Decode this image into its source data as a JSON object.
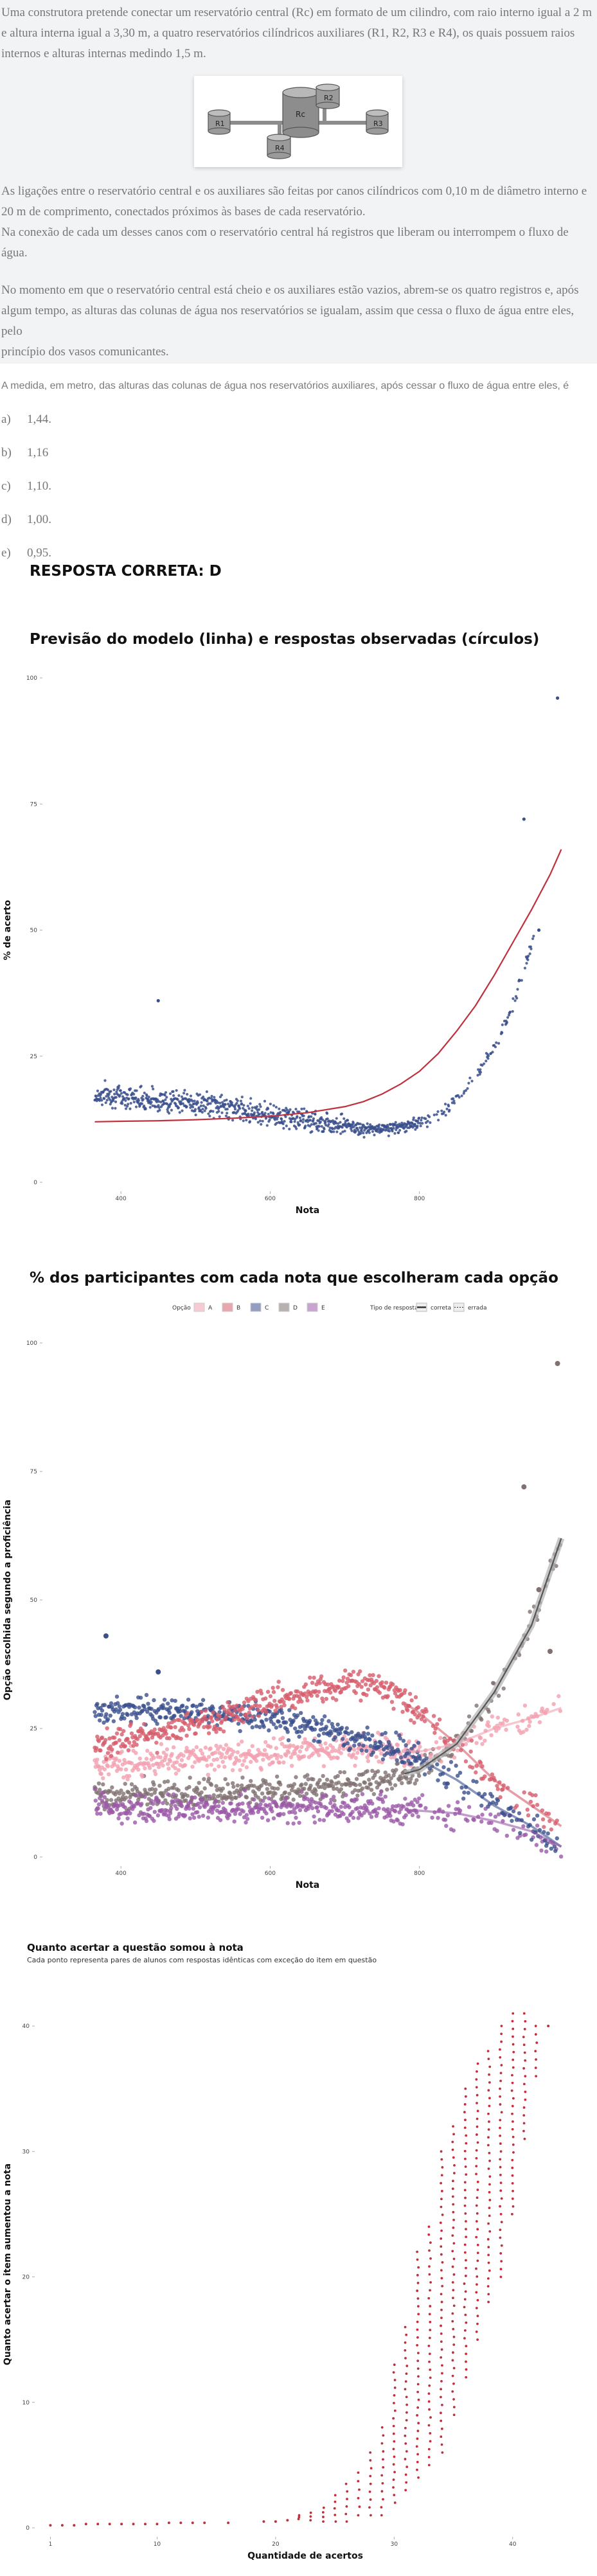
{
  "question": {
    "paragraphs": [
      [
        "Uma construtora pretende conectar um reservatório central (Rc) em formato de um cilindro, com raio interno igual a 2 m",
        "e altura interna igual a 3,30 m, a quatro reservatórios cilíndricos auxiliares (R1, R2, R3 e R4), os quais possuem raios",
        "internos e alturas internas medindo 1,5 m."
      ],
      [
        "As ligações entre o reservatório central e os auxiliares são feitas por canos cilíndricos com 0,10 m de diâmetro interno e",
        "20 m de comprimento, conectados próximos às bases de cada reservatório.",
        "Na conexão de cada um desses canos com o reservatório central há registros que liberam ou interrompem o fluxo de",
        "água."
      ],
      [
        "No momento em que o reservatório central está cheio e os auxiliares estão vazios, abrem-se os quatro registros e, após",
        "algum tempo, as alturas das colunas de água nos reservatórios se igualam, assim que cessa o fluxo de água entre eles, pelo",
        "princípio dos vasos comunicantes."
      ]
    ],
    "figure_labels": {
      "central": "Rc",
      "r1": "R1",
      "r2": "R2",
      "r3": "R3",
      "r4": "R4"
    },
    "stem": "A medida, em metro, das alturas das colunas de água nos reservatórios auxiliares, após cessar o fluxo de água entre eles, é",
    "alternatives": [
      {
        "letter": "a)",
        "text": "1,44."
      },
      {
        "letter": "b)",
        "text": "1,16"
      },
      {
        "letter": "c)",
        "text": "1,10."
      },
      {
        "letter": "d)",
        "text": "1,00."
      },
      {
        "letter": "e)",
        "text": "0,95."
      }
    ],
    "answer": "RESPOSTA CORRETA: D"
  },
  "colors": {
    "model_line": "#c0303c",
    "observed": "#3a4f8c",
    "A": "#f2a0b0",
    "B": "#d65c6c",
    "C": "#3a4f8c",
    "D": "#807070",
    "E": "#9b59a8",
    "correct_band": "#b0b0b0",
    "bar_points": "#c0303c"
  },
  "chart_data": [
    {
      "type": "line",
      "title": "Previsão do modelo (linha) e respostas observadas (círculos)",
      "xlabel": "Nota",
      "ylabel": "% de acerto",
      "xlim": [
        300,
        1000
      ],
      "ylim": [
        0,
        100
      ],
      "xticks": [
        {
          "v": 400,
          "label": "400"
        },
        {
          "v": 600,
          "label": "600"
        },
        {
          "v": 800,
          "label": "800"
        }
      ],
      "yticks": [
        {
          "v": 0,
          "label": "0"
        },
        {
          "v": 25,
          "label": "25"
        },
        {
          "v": 50,
          "label": "50"
        },
        {
          "v": 75,
          "label": "75"
        },
        {
          "v": 100,
          "label": "100"
        }
      ],
      "model_curve": {
        "x": [
          365,
          400,
          450,
          500,
          550,
          600,
          650,
          700,
          725,
          750,
          775,
          800,
          825,
          850,
          875,
          900,
          925,
          950,
          975,
          990
        ],
        "y": [
          12,
          12.1,
          12.2,
          12.4,
          12.7,
          13.1,
          13.8,
          15,
          16,
          17.5,
          19.5,
          22,
          25.5,
          30,
          35,
          41,
          47.5,
          54,
          61,
          66
        ]
      },
      "observed": {
        "x": [
          365,
          380,
          400,
          420,
          440,
          460,
          480,
          500,
          520,
          540,
          560,
          580,
          600,
          620,
          640,
          660,
          680,
          700,
          720,
          740,
          760,
          780,
          800,
          820,
          840,
          860,
          880,
          900,
          920,
          940,
          960,
          985
        ],
        "y": [
          17,
          17.5,
          17,
          16.8,
          16.5,
          16,
          16.2,
          15.5,
          15.4,
          15,
          14.5,
          14,
          13.5,
          13,
          12.5,
          12,
          11.8,
          11.5,
          10.5,
          10.5,
          10.8,
          11,
          12,
          13,
          15,
          18,
          22,
          27,
          33,
          42,
          52,
          97
        ]
      },
      "outliers": {
        "x": [
          450,
          940,
          960,
          985
        ],
        "y": [
          36,
          72,
          50,
          96
        ]
      }
    },
    {
      "type": "line",
      "title": "% dos participantes com cada nota que escolheram cada opção",
      "xlabel": "Nota",
      "ylabel": "Opção escolhida segundo a proficiência",
      "xlim": [
        300,
        1000
      ],
      "ylim": [
        0,
        100
      ],
      "xticks": [
        {
          "v": 400,
          "label": "400"
        },
        {
          "v": 600,
          "label": "600"
        },
        {
          "v": 800,
          "label": "800"
        }
      ],
      "yticks": [
        {
          "v": 0,
          "label": "0"
        },
        {
          "v": 25,
          "label": "25"
        },
        {
          "v": 50,
          "label": "50"
        },
        {
          "v": 75,
          "label": "75"
        },
        {
          "v": 100,
          "label": "100"
        }
      ],
      "legend": {
        "option_title": "Opção",
        "options": [
          "A",
          "B",
          "C",
          "D",
          "E"
        ],
        "type_title": "Tipo de resposta",
        "types": [
          "correta",
          "errada"
        ]
      },
      "x": [
        365,
        400,
        450,
        500,
        550,
        600,
        650,
        700,
        750,
        800,
        850,
        900,
        950,
        990
      ],
      "series": [
        {
          "option": "A",
          "values": [
            18,
            18,
            18.5,
            19,
            19.5,
            20,
            20.5,
            21,
            21,
            20.5,
            22,
            25,
            27,
            29
          ]
        },
        {
          "option": "B",
          "values": [
            22,
            23,
            24,
            26,
            28,
            30,
            32,
            34,
            33,
            28,
            22,
            15,
            10,
            6
          ]
        },
        {
          "option": "C",
          "values": [
            28,
            28.5,
            28.5,
            28,
            27.5,
            27,
            25.5,
            24,
            22,
            19,
            15,
            10,
            6,
            2
          ]
        },
        {
          "option": "D",
          "values": [
            12,
            12,
            12,
            12.2,
            12.5,
            13,
            13.5,
            14,
            15,
            17,
            22,
            32,
            45,
            62
          ]
        },
        {
          "option": "E",
          "values": [
            10,
            9.5,
            9.5,
            9.5,
            9.5,
            9.5,
            9.5,
            9.5,
            9.5,
            9,
            8.5,
            7,
            5,
            2
          ]
        }
      ],
      "correct_option": "D",
      "outliers": {
        "x": [
          380,
          450,
          940,
          960,
          975,
          985
        ],
        "y": [
          43,
          36,
          72,
          52,
          40,
          96
        ]
      }
    },
    {
      "type": "scatter",
      "title": "Quanto acertar a questão somou à nota",
      "subtitle": "Cada ponto representa pares de alunos com respostas idênticas com exceção do item em questão",
      "xlabel": "Quantidade de acertos",
      "ylabel": "Quanto acertar o item aumentou a nota",
      "xlim": [
        0,
        45
      ],
      "ylim": [
        0,
        42
      ],
      "xticks": [
        {
          "v": 1,
          "label": "1"
        },
        {
          "v": 10,
          "label": "10"
        },
        {
          "v": 20,
          "label": "20"
        },
        {
          "v": 30,
          "label": "30"
        },
        {
          "v": 40,
          "label": "40"
        }
      ],
      "yticks": [
        {
          "v": 0,
          "label": "0"
        },
        {
          "v": 10,
          "label": "10"
        },
        {
          "v": 20,
          "label": "20"
        },
        {
          "v": 30,
          "label": "30"
        },
        {
          "v": 40,
          "label": "40"
        }
      ],
      "columns": [
        {
          "x": 1,
          "y": [
            0.2
          ]
        },
        {
          "x": 2,
          "y": [
            0.2
          ]
        },
        {
          "x": 3,
          "y": [
            0.2
          ]
        },
        {
          "x": 4,
          "y": [
            0.3
          ]
        },
        {
          "x": 5,
          "y": [
            0.3
          ]
        },
        {
          "x": 6,
          "y": [
            0.3
          ]
        },
        {
          "x": 7,
          "y": [
            0.3
          ]
        },
        {
          "x": 8,
          "y": [
            0.3
          ]
        },
        {
          "x": 9,
          "y": [
            0.3
          ]
        },
        {
          "x": 10,
          "y": [
            0.3
          ]
        },
        {
          "x": 11,
          "y": [
            0.4
          ]
        },
        {
          "x": 12,
          "y": [
            0.4
          ]
        },
        {
          "x": 13,
          "y": [
            0.4
          ]
        },
        {
          "x": 14,
          "y": [
            0.4
          ]
        },
        {
          "x": 16,
          "y": [
            0.4
          ]
        },
        {
          "x": 19,
          "y": [
            0.5
          ]
        },
        {
          "x": 20,
          "y": [
            0.5
          ]
        },
        {
          "x": 21,
          "y": [
            0.6
          ]
        },
        {
          "x": 22,
          "y": [
            0.7,
            1
          ]
        },
        {
          "x": 23,
          "y": [
            0.6,
            1.2
          ]
        },
        {
          "x": 24,
          "y": [
            0.5,
            1,
            1.6
          ]
        },
        {
          "x": 25,
          "y": [
            0.5,
            1,
            2,
            2.6
          ]
        },
        {
          "x": 26,
          "y": [
            0.5,
            1.5,
            2.5,
            3.5
          ]
        },
        {
          "x": 27,
          "y": [
            1,
            2,
            3,
            4.4
          ]
        },
        {
          "x": 28,
          "y": [
            1,
            2.5,
            4,
            5.2,
            6
          ]
        },
        {
          "x": 29,
          "y": [
            1,
            2,
            3.5,
            5,
            6.5,
            8
          ]
        },
        {
          "x": 30,
          "y": [
            2,
            3.5,
            5,
            7,
            9,
            11,
            13
          ]
        },
        {
          "x": 31,
          "y": [
            3,
            5,
            8,
            10,
            12,
            14,
            16
          ]
        },
        {
          "x": 32,
          "y": [
            4,
            6,
            9,
            12,
            15,
            18,
            20,
            22
          ]
        },
        {
          "x": 33,
          "y": [
            5,
            8,
            12,
            15,
            18,
            21,
            24
          ]
        },
        {
          "x": 34,
          "y": [
            6,
            9,
            13,
            17,
            21,
            25,
            28,
            30
          ]
        },
        {
          "x": 35,
          "y": [
            9,
            13,
            17,
            21,
            25,
            28,
            32
          ]
        },
        {
          "x": 36,
          "y": [
            12,
            16,
            20,
            24,
            28,
            32,
            35
          ]
        },
        {
          "x": 37,
          "y": [
            15,
            19,
            23,
            27,
            31,
            34,
            37
          ]
        },
        {
          "x": 38,
          "y": [
            18,
            22,
            26,
            30,
            34,
            38
          ]
        },
        {
          "x": 39,
          "y": [
            20,
            25,
            30,
            34,
            37,
            40
          ]
        },
        {
          "x": 40,
          "y": [
            25,
            29,
            32,
            35,
            37,
            39,
            40,
            41
          ]
        },
        {
          "x": 41,
          "y": [
            31,
            35,
            38,
            40,
            41
          ]
        },
        {
          "x": 42,
          "y": [
            36,
            39,
            40
          ]
        },
        {
          "x": 43,
          "y": [
            40
          ]
        }
      ]
    }
  ]
}
